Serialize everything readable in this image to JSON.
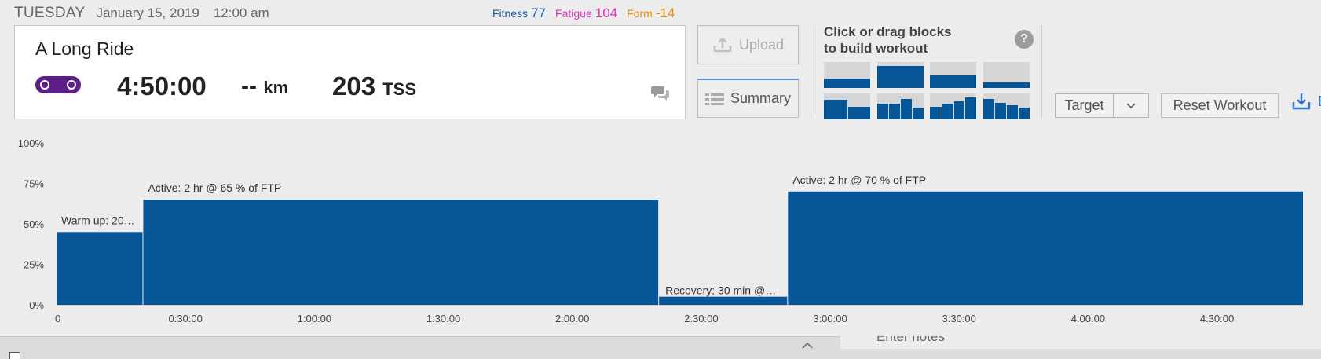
{
  "header": {
    "day": "TUESDAY",
    "date": "January 15, 2019",
    "time": "12:00 am"
  },
  "metrics": {
    "fitness_label": "Fitness",
    "fitness_value": "77",
    "fatigue_label": "Fatigue",
    "fatigue_value": "104",
    "form_label": "Form",
    "form_value": "-14"
  },
  "workout": {
    "title": "A Long Ride",
    "sport_icon": "bike-chain-link-icon",
    "duration": "4:50:00",
    "distance_value": "--",
    "distance_unit": "km",
    "tss_value": "203",
    "tss_unit": "TSS"
  },
  "buttons": {
    "upload": "Upload",
    "summary": "Summary",
    "target": "Target",
    "reset": "Reset Workout",
    "export_partial": "E"
  },
  "builder": {
    "title_line1": "Click or drag blocks",
    "title_line2": "to build workout",
    "help": "?",
    "templates": [
      {
        "name": "steady-low",
        "fills": [
          0.35
        ]
      },
      {
        "name": "steady-high",
        "fills": [
          0.85
        ]
      },
      {
        "name": "steady-mid",
        "fills": [
          0.5
        ]
      },
      {
        "name": "steady-min",
        "fills": [
          0.2
        ]
      },
      {
        "name": "two-step",
        "fills": [
          0.75,
          0.5
        ]
      },
      {
        "name": "warmup-ramp",
        "fills": [
          0.6,
          0.6,
          0.8,
          0.45
        ]
      },
      {
        "name": "ramp-up",
        "fills": [
          0.5,
          0.6,
          0.7,
          0.85
        ]
      },
      {
        "name": "ramp-down",
        "fills": [
          0.8,
          0.65,
          0.55,
          0.45
        ]
      }
    ]
  },
  "colors": {
    "bar": "#055597",
    "block_bg": "#d6d6d6",
    "fitness": "#1f5aa6",
    "fatigue": "#d633b5",
    "form": "#e88a0c"
  },
  "chart_data": {
    "type": "bar",
    "x_unit": "hours:min:sec",
    "xlim": [
      "0",
      "4:50:00"
    ],
    "ylim": [
      0,
      100
    ],
    "y_ticks": [
      "100%",
      "75%",
      "50%",
      "25%",
      "0%"
    ],
    "x_ticks": [
      "0",
      "0:30:00",
      "1:00:00",
      "1:30:00",
      "2:00:00",
      "2:30:00",
      "3:00:00",
      "3:30:00",
      "4:00:00",
      "4:30:00"
    ],
    "segments": [
      {
        "label": "Warm up: 20…",
        "start_min": 0,
        "end_min": 20,
        "percent_ftp": 45
      },
      {
        "label": "Active: 2 hr @ 65 % of FTP",
        "start_min": 20,
        "end_min": 140,
        "percent_ftp": 65
      },
      {
        "label": "Recovery: 30 min @…",
        "start_min": 140,
        "end_min": 170,
        "percent_ftp": 5
      },
      {
        "label": "Active: 2 hr @ 70 % of FTP",
        "start_min": 170,
        "end_min": 290,
        "percent_ftp": 70
      }
    ]
  },
  "notes": {
    "placeholder_partial": "Enter notes"
  }
}
